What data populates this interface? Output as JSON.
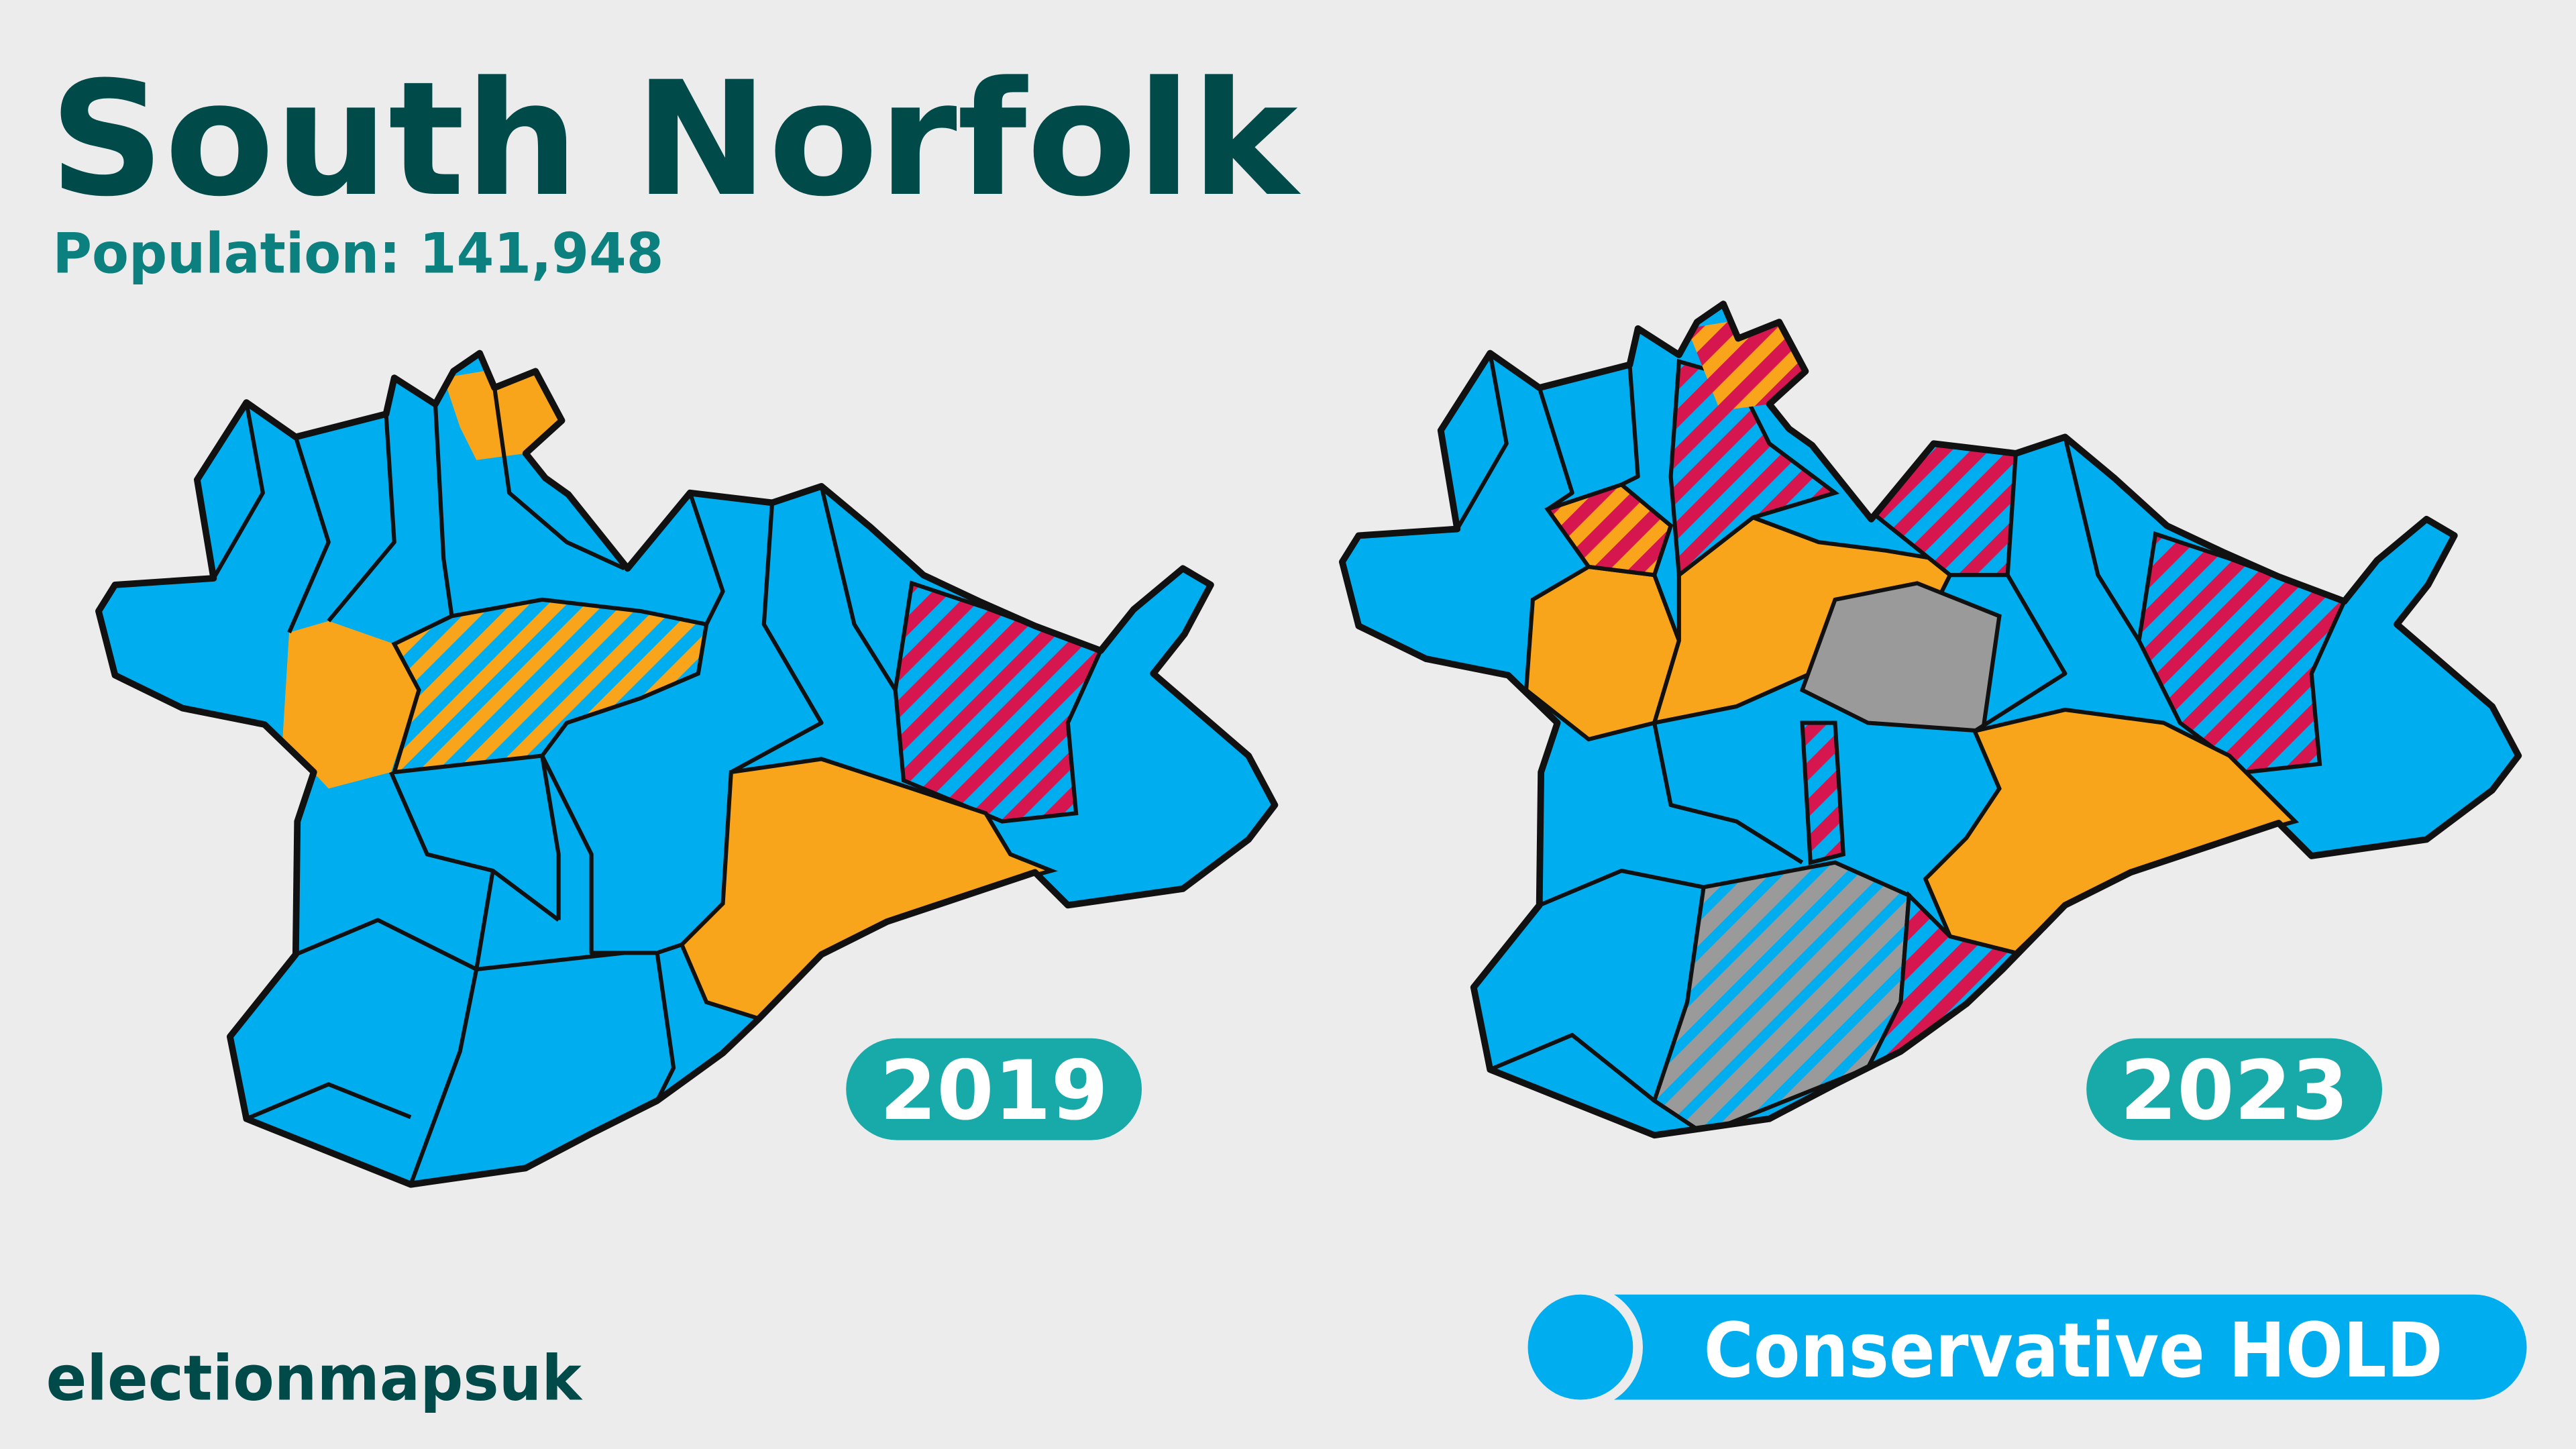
{
  "title": "South Norfolk",
  "subtitle": "Population: 141,948",
  "maps": [
    {
      "label": "2019"
    },
    {
      "label": "2023"
    }
  ],
  "result": "Conservative HOLD",
  "credit": "electionmapsuk"
}
